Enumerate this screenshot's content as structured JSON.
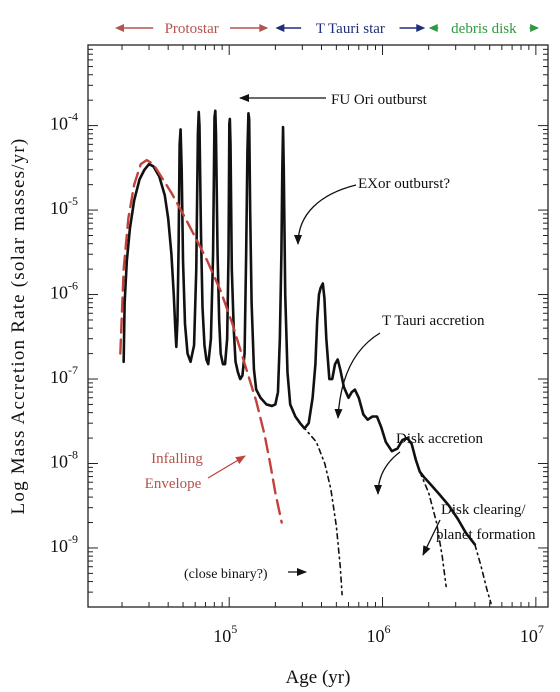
{
  "chart_data": {
    "type": "line",
    "title": "",
    "xlabel": "Age (yr)",
    "ylabel": "Log Mass Accretion Rate (solar masses/yr)",
    "x_scale": "log",
    "y_scale": "log",
    "xlim": [
      12000,
      12000000
    ],
    "ylim": [
      2e-10,
      0.0009
    ],
    "grid": false,
    "x_ticks": [
      {
        "value": 100000,
        "base": "10",
        "exp": "5"
      },
      {
        "value": 1000000,
        "base": "10",
        "exp": "6"
      },
      {
        "value": 10000000,
        "base": "10",
        "exp": "7"
      }
    ],
    "y_ticks": [
      {
        "value": 0.0001,
        "base": "10",
        "exp": "-4"
      },
      {
        "value": 1e-05,
        "base": "10",
        "exp": "-5"
      },
      {
        "value": 1e-06,
        "base": "10",
        "exp": "-6"
      },
      {
        "value": 1e-07,
        "base": "10",
        "exp": "-7"
      },
      {
        "value": 1e-08,
        "base": "10",
        "exp": "-8"
      },
      {
        "value": 1e-09,
        "base": "10",
        "exp": "-9"
      }
    ],
    "phases": [
      {
        "label": "Protostar",
        "color": "#b5524d",
        "from": 18000,
        "to": 180000
      },
      {
        "label": "T Tauri star",
        "color": "#1f2f7a",
        "from": 200000,
        "to": 1900000
      },
      {
        "label": "debris disk",
        "color": "#2e9a3f",
        "from": 2000000,
        "to": 10500000
      }
    ],
    "series": [
      {
        "style": "solid",
        "color": "#111111",
        "points": [
          [
            20500,
            1.6e-07
          ],
          [
            20800,
            8e-07
          ],
          [
            21500,
            2.5e-06
          ],
          [
            22500,
            6e-06
          ],
          [
            24000,
            1.3e-05
          ],
          [
            26000,
            2.3e-05
          ],
          [
            28000,
            3e-05
          ],
          [
            30000,
            3.5e-05
          ],
          [
            32000,
            3.3e-05
          ],
          [
            35000,
            2.5e-05
          ],
          [
            38000,
            1.5e-05
          ],
          [
            40000,
            8e-06
          ],
          [
            42000,
            3e-06
          ],
          [
            43500,
            1e-06
          ],
          [
            44500,
            4e-07
          ],
          [
            45200,
            2.4e-07
          ],
          [
            46000,
            5e-07
          ],
          [
            46800,
            4e-06
          ],
          [
            47500,
            6e-05
          ],
          [
            48200,
            9e-05
          ],
          [
            49000,
            3e-05
          ],
          [
            50000,
            2.5e-06
          ],
          [
            51500,
            4.5e-07
          ],
          [
            53500,
            2e-07
          ],
          [
            56000,
            1.6e-07
          ],
          [
            59000,
            2.5e-07
          ],
          [
            61000,
            2e-06
          ],
          [
            62500,
            8e-05
          ],
          [
            63300,
            0.000145
          ],
          [
            64000,
            0.0001
          ],
          [
            65500,
            5e-06
          ],
          [
            67000,
            7e-07
          ],
          [
            69000,
            2.5e-07
          ],
          [
            71000,
            1.7e-07
          ],
          [
            73000,
            1.5e-07
          ],
          [
            76000,
            3e-07
          ],
          [
            78500,
            3e-06
          ],
          [
            80200,
            0.000125
          ],
          [
            81200,
            0.00015
          ],
          [
            82000,
            8e-05
          ],
          [
            84000,
            3e-06
          ],
          [
            86000,
            5e-07
          ],
          [
            88000,
            2e-07
          ],
          [
            91000,
            1.5e-07
          ],
          [
            94000,
            1.5e-07
          ],
          [
            97000,
            3e-07
          ],
          [
            99000,
            3e-06
          ],
          [
            100200,
            0.000105
          ],
          [
            101000,
            0.00012
          ],
          [
            102000,
            6e-05
          ],
          [
            104000,
            2e-06
          ],
          [
            107000,
            4e-07
          ],
          [
            110000,
            1.6e-07
          ],
          [
            114000,
            1.2e-07
          ],
          [
            118000,
            1e-07
          ],
          [
            122000,
            1.1e-07
          ],
          [
            126000,
            2e-07
          ],
          [
            129000,
            3e-06
          ],
          [
            131500,
            5e-05
          ],
          [
            133500,
            0.00014
          ],
          [
            135000,
            0.00012
          ],
          [
            137000,
            1e-05
          ],
          [
            140000,
            8e-07
          ],
          [
            145000,
            1.3e-07
          ],
          [
            150000,
            7.5e-08
          ],
          [
            160000,
            6e-08
          ],
          [
            175000,
            5e-08
          ],
          [
            190000,
            4.8e-08
          ],
          [
            200000,
            5e-08
          ],
          [
            208000,
            7e-08
          ],
          [
            214000,
            3e-07
          ],
          [
            219000,
            3e-06
          ],
          [
            222000,
            3e-05
          ],
          [
            224500,
            9.6e-05
          ],
          [
            227000,
            3e-05
          ],
          [
            232000,
            1e-06
          ],
          [
            240000,
            1.2e-07
          ],
          [
            250000,
            5e-08
          ],
          [
            270000,
            3.6e-08
          ],
          [
            290000,
            3e-08
          ],
          [
            310000,
            2.6e-08
          ],
          [
            330000,
            3e-08
          ],
          [
            350000,
            6e-08
          ],
          [
            365000,
            1.5e-07
          ],
          [
            375000,
            5e-07
          ],
          [
            385000,
            1e-06
          ],
          [
            395000,
            1.2e-06
          ],
          [
            408000,
            1.35e-06
          ],
          [
            418000,
            9e-07
          ],
          [
            430000,
            3e-07
          ],
          [
            450000,
            1e-07
          ],
          [
            470000,
            1e-07
          ],
          [
            490000,
            1.5e-07
          ],
          [
            510000,
            1.7e-07
          ],
          [
            530000,
            1.3e-07
          ],
          [
            560000,
            8e-08
          ],
          [
            600000,
            6e-08
          ],
          [
            630000,
            7e-08
          ],
          [
            660000,
            7.5e-08
          ],
          [
            700000,
            6e-08
          ],
          [
            750000,
            3.8e-08
          ],
          [
            800000,
            3.3e-08
          ],
          [
            860000,
            3.6e-08
          ],
          [
            920000,
            3.6e-08
          ],
          [
            980000,
            2.7e-08
          ],
          [
            1050000,
            1.8e-08
          ],
          [
            1150000,
            1.4e-08
          ],
          [
            1250000,
            1.5e-08
          ],
          [
            1350000,
            1.9e-08
          ],
          [
            1450000,
            2e-08
          ],
          [
            1550000,
            1.7e-08
          ],
          [
            1650000,
            1.1e-08
          ],
          [
            1750000,
            8e-09
          ],
          [
            1850000,
            7e-09
          ],
          [
            2000000,
            6e-09
          ],
          [
            2300000,
            4.5e-09
          ],
          [
            2700000,
            3.2e-09
          ],
          [
            3100000,
            2.2e-09
          ],
          [
            3500000,
            1.5e-09
          ],
          [
            4000000,
            1.1e-09
          ]
        ]
      },
      {
        "style": "dashed",
        "color": "#c2413b",
        "points": [
          [
            19500,
            2e-07
          ],
          [
            20500,
            2e-06
          ],
          [
            22000,
            8e-06
          ],
          [
            24000,
            2e-05
          ],
          [
            26500,
            3.5e-05
          ],
          [
            29000,
            3.9e-05
          ],
          [
            32000,
            3.5e-05
          ],
          [
            36000,
            2.5e-05
          ],
          [
            42000,
            1.6e-05
          ],
          [
            50000,
            9e-06
          ],
          [
            60000,
            4.8e-06
          ],
          [
            72000,
            2.5e-06
          ],
          [
            88000,
            1.1e-06
          ],
          [
            105000,
            4.5e-07
          ],
          [
            125000,
            1.6e-07
          ],
          [
            150000,
            5.5e-08
          ],
          [
            170000,
            2.2e-08
          ],
          [
            185000,
            1e-08
          ],
          [
            200000,
            4.5e-09
          ],
          [
            220000,
            2e-09
          ]
        ]
      },
      {
        "style": "dashdot",
        "color": "#111111",
        "points": [
          [
            300000,
            2.8e-08
          ],
          [
            370000,
            1.8e-08
          ],
          [
            420000,
            1e-08
          ],
          [
            460000,
            5e-09
          ],
          [
            500000,
            1.8e-09
          ],
          [
            530000,
            6e-10
          ],
          [
            545000,
            2.8e-10
          ]
        ]
      },
      {
        "style": "dashdot",
        "color": "#111111",
        "points": [
          [
            1750000,
            8e-09
          ],
          [
            2000000,
            4.5e-09
          ],
          [
            2250000,
            2e-09
          ],
          [
            2450000,
            8e-10
          ],
          [
            2600000,
            3.5e-10
          ]
        ]
      },
      {
        "style": "dashdot",
        "color": "#111111",
        "points": [
          [
            4000000,
            1.1e-09
          ],
          [
            4400000,
            6e-10
          ],
          [
            4800000,
            3.2e-10
          ],
          [
            5100000,
            2.2e-10
          ]
        ]
      }
    ],
    "annotations": [
      {
        "text": "FU Ori outburst",
        "color": "#111111"
      },
      {
        "text": "EXor outburst?",
        "color": "#111111"
      },
      {
        "text": "T Tauri accretion",
        "color": "#111111"
      },
      {
        "text": "Disk accretion",
        "color": "#111111"
      },
      {
        "text": "Disk clearing/",
        "color": "#111111"
      },
      {
        "text": "planet formation",
        "color": "#111111"
      },
      {
        "text": "Infalling",
        "color": "#b5524d"
      },
      {
        "text": "Envelope",
        "color": "#b5524d"
      },
      {
        "text": "(close binary?)",
        "color": "#111111"
      }
    ]
  }
}
